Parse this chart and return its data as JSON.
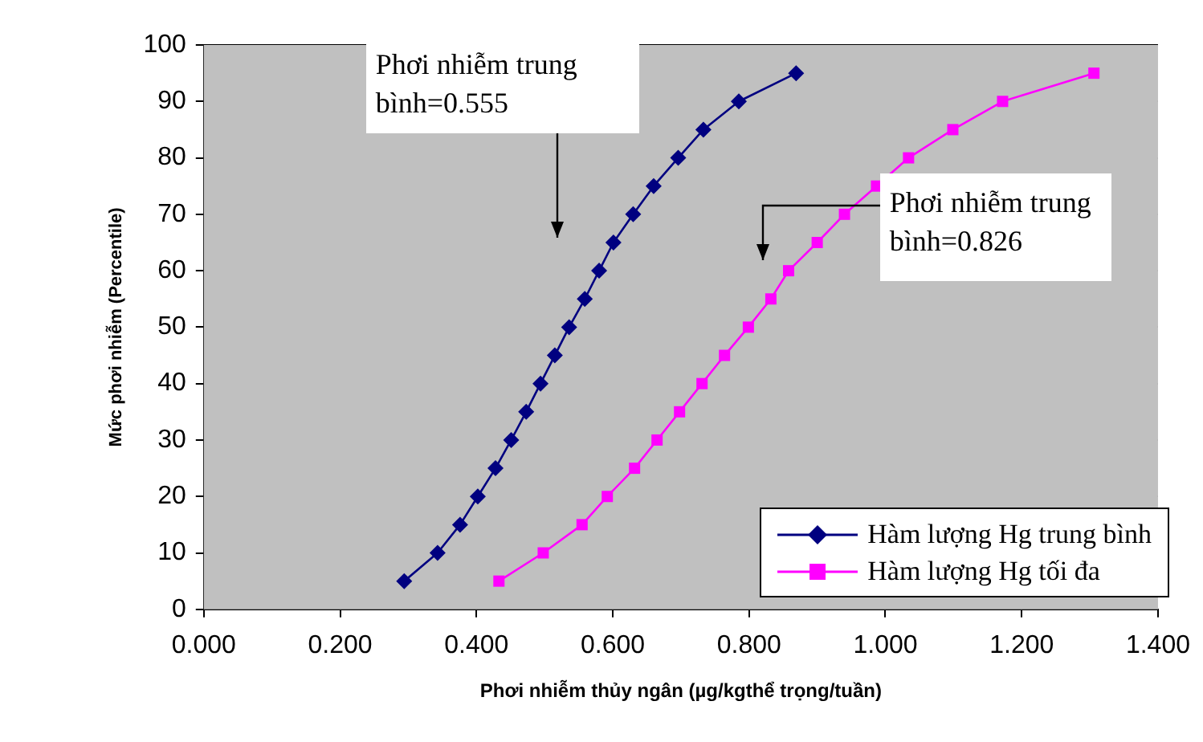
{
  "chart_data": {
    "type": "line",
    "xlabel": "Phơi nhiễm thủy ngân (µg/kgthể trọng/tuần)",
    "ylabel": "Mức phơi nhiễm (Percentile)",
    "xlim": [
      0,
      1.4
    ],
    "xticks": [
      {
        "value": 0,
        "label": "0.000"
      },
      {
        "value": 0.2,
        "label": "0.200"
      },
      {
        "value": 0.4,
        "label": "0.400"
      },
      {
        "value": 0.6,
        "label": "0.600"
      },
      {
        "value": 0.8,
        "label": "0.800"
      },
      {
        "value": 1.0,
        "label": "1.000"
      },
      {
        "value": 1.2,
        "label": "1.200"
      },
      {
        "value": 1.4,
        "label": "1.400"
      }
    ],
    "ylim": [
      0,
      100
    ],
    "yticks": [
      0,
      10,
      20,
      30,
      40,
      50,
      60,
      70,
      80,
      90,
      100
    ],
    "grid": "y",
    "legend": "bottom right",
    "series": [
      {
        "name": "Hàm lượng Hg trung bình",
        "color": "#000080",
        "marker": "diamond",
        "x": [
          0.294,
          0.343,
          0.376,
          0.402,
          0.428,
          0.451,
          0.473,
          0.494,
          0.515,
          0.536,
          0.559,
          0.58,
          0.601,
          0.63,
          0.66,
          0.696,
          0.733,
          0.785,
          0.869
        ],
        "values": [
          5,
          10,
          15,
          20,
          25,
          30,
          35,
          40,
          45,
          50,
          55,
          60,
          65,
          70,
          75,
          80,
          85,
          90,
          95
        ]
      },
      {
        "name": "Hàm lượng Hg tối đa",
        "color": "#ff00ff",
        "marker": "square",
        "x": [
          0.433,
          0.498,
          0.555,
          0.592,
          0.632,
          0.665,
          0.698,
          0.731,
          0.764,
          0.799,
          0.832,
          0.858,
          0.9,
          0.94,
          0.987,
          1.034,
          1.099,
          1.172,
          1.306
        ],
        "values": [
          5,
          10,
          15,
          20,
          25,
          30,
          35,
          40,
          45,
          50,
          55,
          60,
          65,
          70,
          75,
          80,
          85,
          90,
          95
        ]
      }
    ],
    "annotations": [
      "Phơi nhiễm trung bình=0.555",
      "Phơi nhiễm trung bình=0.826"
    ]
  }
}
